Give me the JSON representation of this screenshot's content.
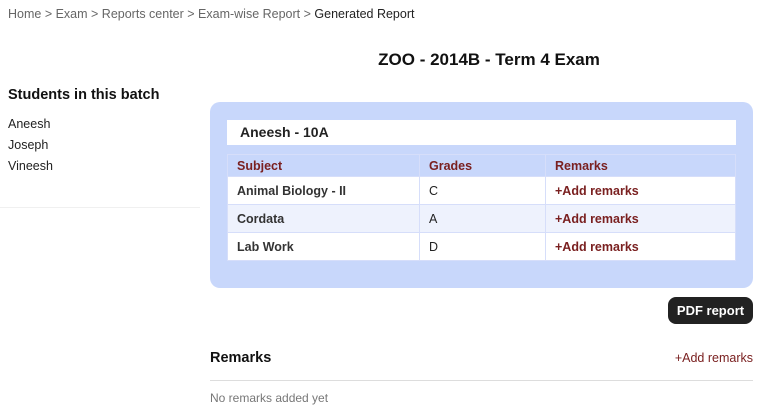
{
  "breadcrumb": [
    "Home",
    "Exam",
    "Reports center",
    "Exam-wise Report",
    "Generated Report"
  ],
  "title": "ZOO - 2014B - Term 4 Exam",
  "students": {
    "heading": "Students in this batch",
    "items": [
      "Aneesh",
      "Joseph",
      "Vineesh"
    ]
  },
  "report": {
    "student": "Aneesh - 10A",
    "headers": [
      "Subject",
      "Grades",
      "Remarks"
    ],
    "rows": [
      {
        "subject": "Animal Biology - II",
        "grade": "C",
        "remarks": "+Add remarks"
      },
      {
        "subject": "Cordata",
        "grade": "A",
        "remarks": "+Add remarks"
      },
      {
        "subject": "Lab Work",
        "grade": "D",
        "remarks": "+Add remarks"
      }
    ]
  },
  "pdf_label": "PDF report",
  "remarks": {
    "heading": "Remarks",
    "add": "+Add remarks",
    "empty": "No remarks added yet"
  }
}
